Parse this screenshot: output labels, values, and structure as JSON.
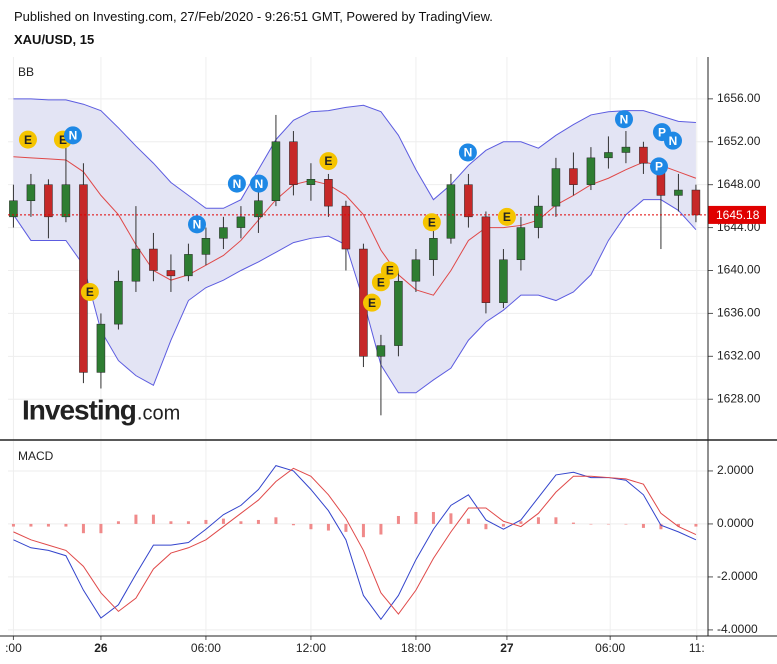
{
  "header": {
    "published": "Published on Investing.com, 27/Feb/2020 - 9:26:51 GMT, Powered by TradingView.",
    "symbol": "XAU/USD, 15"
  },
  "chart_data": [
    {
      "type": "candlestick",
      "title": "BB",
      "x": [
        -5,
        -4,
        -3,
        -2,
        -1,
        0,
        1,
        2,
        3,
        4,
        5,
        6,
        7,
        8,
        9,
        10,
        11,
        12,
        13,
        14,
        15,
        16,
        17,
        18,
        19,
        20,
        21,
        22,
        23,
        24,
        25,
        26,
        27,
        28,
        29,
        30,
        31,
        32,
        33,
        34
      ],
      "open": [
        1645,
        1646.5,
        1648,
        1645,
        1648,
        1630.5,
        1635,
        1639,
        1642,
        1640,
        1639.5,
        1641.5,
        1643,
        1644,
        1645,
        1646.5,
        1652,
        1648,
        1648.5,
        1646,
        1642,
        1632,
        1633,
        1639,
        1641,
        1643,
        1648,
        1645,
        1637,
        1641,
        1644,
        1646,
        1649.5,
        1648,
        1650.5,
        1651,
        1651.5,
        1650,
        1647,
        1647.5
      ],
      "high": [
        1648,
        1649,
        1648.5,
        1653,
        1650,
        1636,
        1640,
        1646,
        1643.5,
        1641.5,
        1642.5,
        1644,
        1645,
        1646,
        1647.5,
        1654.5,
        1653,
        1650,
        1649,
        1646.5,
        1642.5,
        1634,
        1640,
        1642,
        1644,
        1649,
        1649,
        1645.5,
        1642,
        1645,
        1647,
        1650.5,
        1651,
        1651.5,
        1652.5,
        1653,
        1652,
        1650.5,
        1649,
        1648
      ],
      "low": [
        1644,
        1645,
        1643,
        1644.5,
        1629.5,
        1629,
        1634.5,
        1638,
        1639,
        1638,
        1639,
        1640.5,
        1642,
        1643,
        1643.5,
        1646,
        1647,
        1646.5,
        1645,
        1640,
        1631,
        1626.5,
        1632,
        1638,
        1639.5,
        1642.5,
        1644,
        1636,
        1636.5,
        1640,
        1643,
        1645,
        1647,
        1647.5,
        1649.5,
        1650,
        1649,
        1642,
        1645.5,
        1644.5
      ],
      "close": [
        1646.5,
        1648,
        1645,
        1648,
        1630.5,
        1635,
        1639,
        1642,
        1640,
        1639.5,
        1641.5,
        1643,
        1644,
        1645,
        1646.5,
        1652,
        1648,
        1648.5,
        1646,
        1642,
        1632,
        1633,
        1639,
        1641,
        1643,
        1648,
        1645,
        1637,
        1641,
        1644,
        1646,
        1649.5,
        1648,
        1650.5,
        1651,
        1651.5,
        1650,
        1647,
        1647.5,
        1645.18
      ],
      "up_color": "#2e7d32",
      "down_color": "#c62828",
      "lines": [
        {
          "color": "#5c5ce0",
          "values": [
            1656.0,
            1656.0,
            1655.9,
            1655.9,
            1655.5,
            1654.9,
            1653.3,
            1651.6,
            1650.0,
            1648.2,
            1647.0,
            1645.8,
            1645.8,
            1646.6,
            1649.4,
            1652.2,
            1654.0,
            1654.8,
            1654.9,
            1655.2,
            1655.4,
            1654.8,
            1652.6,
            1649.4,
            1646.6,
            1648.0,
            1649.8,
            1651.2,
            1652.0,
            1652.0,
            1651.4,
            1652.6,
            1653.6,
            1654.5,
            1654.8,
            1654.9,
            1654.9,
            1654.4,
            1653.9,
            1653.8
          ]
        },
        {
          "color": "#e04848",
          "values": [
            1650.6,
            1650.5,
            1650.4,
            1650.3,
            1649.2,
            1647.0,
            1645.2,
            1642.4,
            1640.0,
            1639.1,
            1639.6,
            1640.5,
            1641.4,
            1642.8,
            1644.7,
            1646.6,
            1648.0,
            1648.4,
            1648.0,
            1647.0,
            1645.2,
            1641.9,
            1639.6,
            1638.2,
            1637.7,
            1640.0,
            1642.8,
            1644.0,
            1644.0,
            1644.2,
            1644.7,
            1646.1,
            1647.0,
            1648.0,
            1648.6,
            1649.4,
            1650.1,
            1649.8,
            1649.2,
            1648.6
          ]
        },
        {
          "color": "#5c5ce0",
          "values": [
            1645.2,
            1642.8,
            1642.8,
            1642.8,
            1640.5,
            1634.4,
            1631.6,
            1630.2,
            1629.3,
            1633.5,
            1637.2,
            1638.4,
            1639.1,
            1640.0,
            1640.8,
            1641.7,
            1642.6,
            1643.0,
            1643.2,
            1642.4,
            1637.2,
            1631.2,
            1628.6,
            1628.6,
            1629.8,
            1630.9,
            1633.5,
            1635.2,
            1636.3,
            1637.7,
            1637.7,
            1637.2,
            1638.0,
            1639.6,
            1642.8,
            1645.2,
            1646.6,
            1646.6,
            1645.6,
            1643.8
          ]
        }
      ],
      "band_fill": "#e3e4f4",
      "annotations": [
        {
          "x": -4.17,
          "y": 1652.2,
          "label": "E",
          "color": "#f5c400"
        },
        {
          "x": -2.17,
          "y": 1652.2,
          "label": "E",
          "color": "#f5c400"
        },
        {
          "x": -1.6,
          "y": 1652.6,
          "label": "N",
          "color": "#1e88e5"
        },
        {
          "x": -0.63,
          "y": 1638.0,
          "label": "E",
          "color": "#f5c400"
        },
        {
          "x": 5.49,
          "y": 1644.3,
          "label": "N",
          "color": "#1e88e5"
        },
        {
          "x": 7.77,
          "y": 1648.1,
          "label": "N",
          "color": "#1e88e5"
        },
        {
          "x": 9.03,
          "y": 1648.1,
          "label": "N",
          "color": "#1e88e5"
        },
        {
          "x": 13.0,
          "y": 1650.2,
          "label": "E",
          "color": "#f5c400"
        },
        {
          "x": 15.49,
          "y": 1637.0,
          "label": "E",
          "color": "#f5c400"
        },
        {
          "x": 16.0,
          "y": 1638.9,
          "label": "E",
          "color": "#f5c400"
        },
        {
          "x": 16.51,
          "y": 1640.0,
          "label": "E",
          "color": "#f5c400"
        },
        {
          "x": 18.91,
          "y": 1644.5,
          "label": "E",
          "color": "#f5c400"
        },
        {
          "x": 20.97,
          "y": 1651.0,
          "label": "N",
          "color": "#1e88e5"
        },
        {
          "x": 23.2,
          "y": 1645.0,
          "label": "E",
          "color": "#f5c400"
        },
        {
          "x": 29.89,
          "y": 1654.1,
          "label": "N",
          "color": "#1e88e5"
        },
        {
          "x": 32.06,
          "y": 1652.9,
          "label": "P",
          "color": "#1e88e5"
        },
        {
          "x": 32.69,
          "y": 1652.1,
          "label": "N",
          "color": "#1e88e5"
        },
        {
          "x": 31.89,
          "y": 1649.7,
          "label": "P",
          "color": "#1e88e5"
        }
      ],
      "last_price": 1645.18,
      "last_color": "#e00000",
      "watermark": [
        "Investing",
        ".com"
      ],
      "xlim": [
        -5.31,
        34.69
      ],
      "ylim": [
        1624.2,
        1659.9
      ],
      "yticks": [
        {
          "value": 1628,
          "label": "1628.00"
        },
        {
          "value": 1632,
          "label": "1632.00"
        },
        {
          "value": 1636,
          "label": "1636.00"
        },
        {
          "value": 1640,
          "label": "1640.00"
        },
        {
          "value": 1644,
          "label": "1644.00"
        },
        {
          "value": 1648,
          "label": "1648.00"
        },
        {
          "value": 1652,
          "label": "1652.00"
        },
        {
          "value": 1656,
          "label": "1656.00"
        }
      ],
      "grid": true
    },
    {
      "type": "macd",
      "title": "MACD",
      "x": [
        -5,
        -4,
        -3,
        -2,
        -1,
        0,
        1,
        2,
        3,
        4,
        5,
        6,
        7,
        8,
        9,
        10,
        11,
        12,
        13,
        14,
        15,
        16,
        17,
        18,
        19,
        20,
        21,
        22,
        23,
        24,
        25,
        26,
        27,
        28,
        29,
        30,
        31,
        32,
        33,
        34
      ],
      "macd": [
        -0.6,
        -0.9,
        -1.0,
        -1.2,
        -2.5,
        -3.55,
        -3.05,
        -1.9,
        -0.8,
        -0.8,
        -0.7,
        -0.2,
        0.35,
        0.7,
        1.3,
        2.2,
        2.0,
        1.3,
        0.5,
        -0.6,
        -2.7,
        -3.6,
        -2.7,
        -1.35,
        -0.2,
        0.7,
        1.1,
        0.15,
        -0.2,
        0.15,
        1.0,
        1.85,
        1.95,
        1.75,
        1.75,
        1.65,
        1.1,
        -0.05,
        -0.3,
        -0.6
      ],
      "signal": [
        -0.3,
        -0.6,
        -0.8,
        -1.0,
        -1.6,
        -2.6,
        -3.3,
        -2.8,
        -1.7,
        -1.1,
        -0.9,
        -0.6,
        -0.1,
        0.4,
        0.9,
        1.6,
        2.1,
        1.8,
        1.1,
        0.2,
        -1.0,
        -2.6,
        -3.4,
        -2.5,
        -1.3,
        -0.3,
        0.6,
        0.6,
        0.1,
        -0.1,
        0.4,
        1.2,
        1.8,
        1.8,
        1.75,
        1.7,
        1.5,
        0.4,
        -0.1,
        -0.4
      ],
      "histogram": [
        -0.1,
        -0.1,
        -0.1,
        -0.1,
        -0.35,
        -0.35,
        0.1,
        0.35,
        0.35,
        0.1,
        0.1,
        0.15,
        0.2,
        0.1,
        0.15,
        0.25,
        -0.05,
        -0.2,
        -0.25,
        -0.3,
        -0.5,
        -0.4,
        0.3,
        0.45,
        0.45,
        0.4,
        0.2,
        -0.2,
        -0.1,
        0.1,
        0.25,
        0.25,
        0.05,
        -0.02,
        0,
        -0.02,
        -0.15,
        -0.2,
        -0.1,
        -0.1
      ],
      "macd_color": "#3344cc",
      "signal_color": "#e04a4a",
      "histogram_color": "#f08a8a",
      "xlim": [
        -5.31,
        34.69
      ],
      "ylim": [
        -4.23,
        3.13
      ],
      "yticks": [
        {
          "value": -4,
          "label": "-4.0000"
        },
        {
          "value": -2,
          "label": "-2.0000"
        },
        {
          "value": 0,
          "label": "0.0000"
        },
        {
          "value": 2,
          "label": "2.0000"
        }
      ],
      "xticks": [
        {
          "value": -5,
          "label": ":00"
        },
        {
          "value": 0,
          "label": "26"
        },
        {
          "value": 6,
          "label": "06:00"
        },
        {
          "value": 12,
          "label": "12:00"
        },
        {
          "value": 18,
          "label": "18:00"
        },
        {
          "value": 23.2,
          "label": "27"
        },
        {
          "value": 29.1,
          "label": "06:00"
        },
        {
          "value": 34.05,
          "label": "11:"
        }
      ],
      "grid": true
    }
  ]
}
